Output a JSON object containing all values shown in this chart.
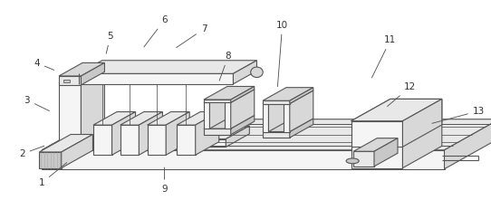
{
  "bg_color": "#ffffff",
  "lc": "#555555",
  "lw": 0.8,
  "face_light": "#f5f5f5",
  "face_mid": "#e8e8e8",
  "face_dark": "#d8d8d8",
  "face_darker": "#c8c8c8",
  "hatch_color": "#aaaaaa",
  "figsize": [
    5.42,
    2.21
  ],
  "dpi": 100,
  "label_fs": 7.5,
  "annotations": [
    [
      1,
      0.085,
      0.085,
      0.14,
      0.195
    ],
    [
      2,
      0.045,
      0.23,
      0.095,
      0.275
    ],
    [
      3,
      0.055,
      0.5,
      0.105,
      0.44
    ],
    [
      4,
      0.075,
      0.685,
      0.115,
      0.645
    ],
    [
      5,
      0.225,
      0.82,
      0.215,
      0.72
    ],
    [
      6,
      0.335,
      0.9,
      0.29,
      0.755
    ],
    [
      7,
      0.415,
      0.855,
      0.355,
      0.755
    ],
    [
      8,
      0.465,
      0.72,
      0.445,
      0.585
    ],
    [
      9,
      0.335,
      0.055,
      0.335,
      0.175
    ],
    [
      10,
      0.575,
      0.875,
      0.565,
      0.555
    ],
    [
      11,
      0.795,
      0.8,
      0.755,
      0.6
    ],
    [
      12,
      0.835,
      0.565,
      0.785,
      0.46
    ],
    [
      13,
      0.975,
      0.445,
      0.875,
      0.38
    ]
  ]
}
